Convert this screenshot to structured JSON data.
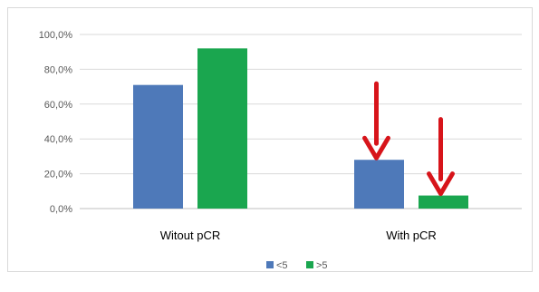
{
  "chart_data": {
    "type": "bar",
    "categories": [
      "Witout pCR",
      "With pCR"
    ],
    "series": [
      {
        "name": "<5",
        "values": [
          71.0,
          28.0
        ],
        "color": "#4e79b9"
      },
      {
        "name": ">5",
        "values": [
          92.0,
          7.5
        ],
        "color": "#1aa64f"
      }
    ],
    "ylim": [
      0,
      100
    ],
    "yticks": [
      "0,0%",
      "20,0%",
      "40,0%",
      "60,0%",
      "80,0%",
      "100,0%"
    ],
    "grid": true,
    "legend": "bottom",
    "annotations": [
      {
        "type": "arrow",
        "color": "#d7141a",
        "points_to": "With pCR / <5"
      },
      {
        "type": "arrow",
        "color": "#d7141a",
        "points_to": "With pCR / >5"
      }
    ]
  }
}
